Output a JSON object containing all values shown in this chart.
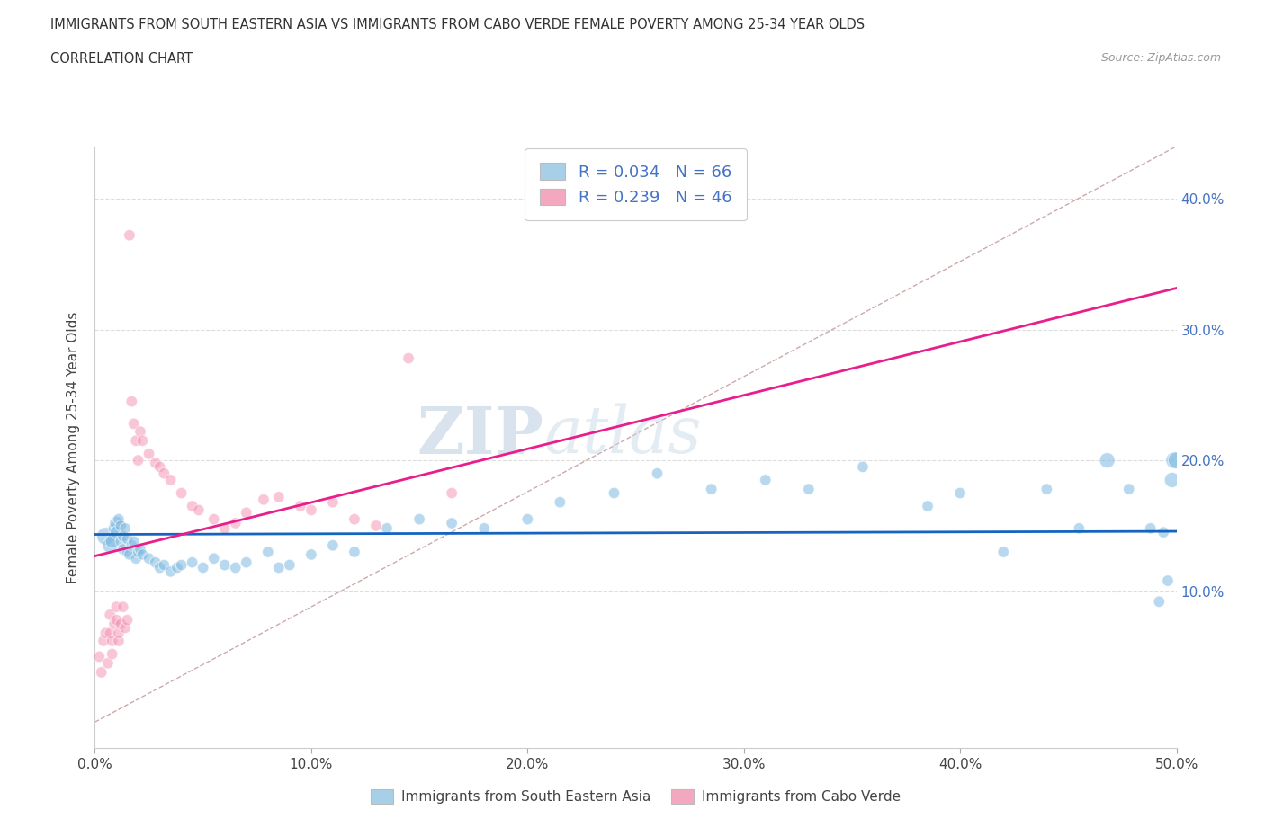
{
  "title": "IMMIGRANTS FROM SOUTH EASTERN ASIA VS IMMIGRANTS FROM CABO VERDE FEMALE POVERTY AMONG 25-34 YEAR OLDS",
  "subtitle": "CORRELATION CHART",
  "source": "Source: ZipAtlas.com",
  "ylabel": "Female Poverty Among 25-34 Year Olds",
  "xlim": [
    0.0,
    0.5
  ],
  "ylim": [
    -0.02,
    0.44
  ],
  "xticks": [
    0.0,
    0.1,
    0.2,
    0.3,
    0.4,
    0.5
  ],
  "yticks": [
    0.1,
    0.2,
    0.3,
    0.4
  ],
  "ytick_labels_right": [
    "10.0%",
    "20.0%",
    "30.0%",
    "40.0%"
  ],
  "xtick_labels": [
    "0.0%",
    "10.0%",
    "20.0%",
    "30.0%",
    "40.0%",
    "50.0%"
  ],
  "legend1_label": "R = 0.034   N = 66",
  "legend2_label": "R = 0.239   N = 46",
  "legend_color_blue": "#a8cfe8",
  "legend_color_pink": "#f4a8c0",
  "blue_scatter_color": "#7cb9e0",
  "pink_scatter_color": "#f48fb1",
  "blue_line_color": "#1565c0",
  "pink_line_color": "#e91e8c",
  "ref_line_color": "#c8a0a0",
  "background_color": "#ffffff",
  "watermark_text": "ZIP",
  "watermark_text2": "atlas",
  "blue_scatter_x": [
    0.005,
    0.007,
    0.008,
    0.009,
    0.01,
    0.01,
    0.011,
    0.012,
    0.012,
    0.013,
    0.013,
    0.014,
    0.015,
    0.015,
    0.016,
    0.017,
    0.018,
    0.019,
    0.02,
    0.021,
    0.022,
    0.025,
    0.028,
    0.03,
    0.032,
    0.035,
    0.038,
    0.04,
    0.045,
    0.05,
    0.055,
    0.06,
    0.065,
    0.07,
    0.08,
    0.085,
    0.09,
    0.1,
    0.11,
    0.12,
    0.135,
    0.15,
    0.165,
    0.18,
    0.2,
    0.215,
    0.24,
    0.26,
    0.285,
    0.31,
    0.33,
    0.355,
    0.385,
    0.4,
    0.42,
    0.44,
    0.455,
    0.468,
    0.478,
    0.488,
    0.492,
    0.494,
    0.496,
    0.498,
    0.499,
    0.5
  ],
  "blue_scatter_y": [
    0.142,
    0.135,
    0.138,
    0.148,
    0.152,
    0.145,
    0.155,
    0.15,
    0.138,
    0.142,
    0.132,
    0.148,
    0.14,
    0.13,
    0.128,
    0.135,
    0.138,
    0.125,
    0.13,
    0.132,
    0.128,
    0.125,
    0.122,
    0.118,
    0.12,
    0.115,
    0.118,
    0.12,
    0.122,
    0.118,
    0.125,
    0.12,
    0.118,
    0.122,
    0.13,
    0.118,
    0.12,
    0.128,
    0.135,
    0.13,
    0.148,
    0.155,
    0.152,
    0.148,
    0.155,
    0.168,
    0.175,
    0.19,
    0.178,
    0.185,
    0.178,
    0.195,
    0.165,
    0.175,
    0.13,
    0.178,
    0.148,
    0.2,
    0.178,
    0.148,
    0.092,
    0.145,
    0.108,
    0.185,
    0.2,
    0.2
  ],
  "blue_scatter_size": [
    200,
    150,
    120,
    100,
    120,
    100,
    80,
    80,
    80,
    80,
    80,
    80,
    80,
    80,
    80,
    80,
    80,
    80,
    80,
    80,
    80,
    80,
    80,
    80,
    80,
    80,
    80,
    80,
    80,
    80,
    80,
    80,
    80,
    80,
    80,
    80,
    80,
    80,
    80,
    80,
    80,
    80,
    80,
    80,
    80,
    80,
    80,
    80,
    80,
    80,
    80,
    80,
    80,
    80,
    80,
    80,
    80,
    150,
    80,
    80,
    80,
    80,
    80,
    150,
    180,
    180
  ],
  "pink_scatter_x": [
    0.002,
    0.003,
    0.004,
    0.005,
    0.006,
    0.007,
    0.007,
    0.008,
    0.008,
    0.009,
    0.01,
    0.01,
    0.011,
    0.011,
    0.012,
    0.013,
    0.014,
    0.015,
    0.016,
    0.017,
    0.018,
    0.019,
    0.02,
    0.021,
    0.022,
    0.025,
    0.028,
    0.03,
    0.032,
    0.035,
    0.04,
    0.045,
    0.048,
    0.055,
    0.06,
    0.065,
    0.07,
    0.078,
    0.085,
    0.095,
    0.1,
    0.11,
    0.12,
    0.13,
    0.145,
    0.165
  ],
  "pink_scatter_y": [
    0.05,
    0.038,
    0.062,
    0.068,
    0.045,
    0.082,
    0.068,
    0.052,
    0.062,
    0.075,
    0.088,
    0.078,
    0.062,
    0.068,
    0.075,
    0.088,
    0.072,
    0.078,
    0.372,
    0.245,
    0.228,
    0.215,
    0.2,
    0.222,
    0.215,
    0.205,
    0.198,
    0.195,
    0.19,
    0.185,
    0.175,
    0.165,
    0.162,
    0.155,
    0.148,
    0.152,
    0.16,
    0.17,
    0.172,
    0.165,
    0.162,
    0.168,
    0.155,
    0.15,
    0.278,
    0.175
  ],
  "pink_scatter_size": [
    80,
    80,
    80,
    80,
    80,
    80,
    80,
    80,
    80,
    80,
    80,
    80,
    80,
    80,
    80,
    80,
    80,
    80,
    80,
    80,
    80,
    80,
    80,
    80,
    80,
    80,
    80,
    80,
    80,
    80,
    80,
    80,
    80,
    80,
    80,
    80,
    80,
    80,
    80,
    80,
    80,
    80,
    80,
    80,
    80,
    80
  ]
}
